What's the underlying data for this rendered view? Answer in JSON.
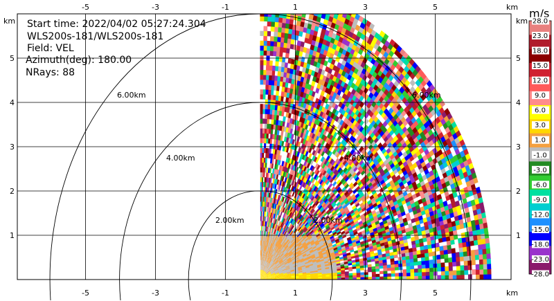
{
  "info": {
    "start_time": "Start time: 2022/04/02 05:27:24.304",
    "instrument": "WLS200s-181/WLS200s-181",
    "field": "Field: VEL",
    "azimuth": "Azimuth(deg): 180.00",
    "nrays": "NRays: 88"
  },
  "axes": {
    "km_label": "km",
    "x_ticks": [
      "-5",
      "-3",
      "-1",
      "1",
      "3",
      "5"
    ],
    "y_ticks": [
      "1",
      "2",
      "3",
      "4",
      "5"
    ]
  },
  "range_rings": [
    "2.00km",
    "4.00km",
    "6.00km"
  ],
  "colorbar": {
    "units": "m/s",
    "labels": [
      "28.0",
      "23.0",
      "18.0",
      "15.0",
      "12.0",
      "9.0",
      "6.0",
      "3.0",
      "1.0",
      "-1.0",
      "-3.0",
      "-6.0",
      "-9.0",
      "-12.0",
      "-15.0",
      "-18.0",
      "-23.0",
      "-28.0"
    ],
    "colors": [
      "#e9807f",
      "#b01c2c",
      "#8b0000",
      "#d02030",
      "#ff5a5a",
      "#ff8c8c",
      "#ffff00",
      "#ffd700",
      "#f4a040",
      "#bdbdbd",
      "#228b22",
      "#32cd32",
      "#00e0a0",
      "#00ced1",
      "#1e90ff",
      "#0000ff",
      "#9932cc",
      "#8b1a6b"
    ]
  },
  "chart_data": {
    "type": "heatmap",
    "description_field": "VEL",
    "x_range_km": [
      -6,
      6
    ],
    "y_range_km": [
      0,
      6
    ],
    "ring_radii_km": [
      2,
      4,
      6
    ],
    "azimuth_deg": 180.0,
    "nrays": 88,
    "grid": true
  }
}
